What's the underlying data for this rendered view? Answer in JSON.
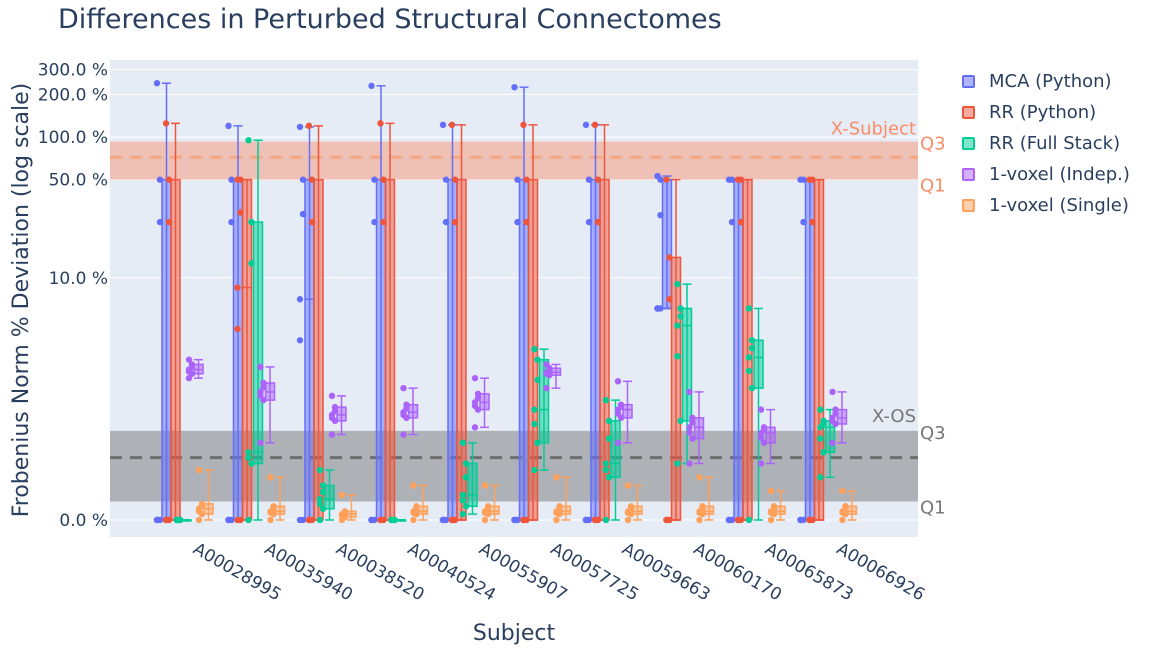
{
  "chart_data": {
    "type": "box",
    "title": "Differences in Perturbed Structural Connectomes",
    "xlabel": "Subject",
    "ylabel": "Frobenius Norm % Deviation (log scale)",
    "yaxis": {
      "scale": "log",
      "tick_labels": [
        "0.0 %",
        "10.0 %",
        "50.0 %",
        "100.0 %",
        "200.0 %",
        "300.0 %"
      ],
      "tick_values": [
        0,
        10,
        50,
        100,
        200,
        300
      ]
    },
    "categories": [
      "A00028995",
      "A00035940",
      "A00038520",
      "A00040524",
      "A00055907",
      "A00057725",
      "A00059663",
      "A00060170",
      "A00065873",
      "A00066926"
    ],
    "series": [
      {
        "name": "MCA (Python)",
        "color": "#636efa",
        "boxes": [
          [
            0,
            0,
            0,
            50,
            240
          ],
          [
            0,
            0,
            0,
            50,
            120
          ],
          [
            0,
            0,
            7,
            50,
            118
          ],
          [
            0,
            0,
            0,
            50,
            230
          ],
          [
            0,
            0,
            0,
            50,
            122
          ],
          [
            0,
            0,
            0,
            50,
            225
          ],
          [
            0,
            0,
            0,
            50,
            122
          ],
          [
            6,
            6,
            6,
            50,
            53
          ],
          [
            0,
            0,
            0,
            50,
            50
          ],
          [
            0,
            0,
            0,
            50,
            50
          ]
        ]
      },
      {
        "name": "RR (Python)",
        "color": "#ef553b",
        "boxes": [
          [
            0,
            0,
            0,
            50,
            125
          ],
          [
            0,
            0,
            8.5,
            50,
            50
          ],
          [
            0,
            0,
            0,
            50,
            120
          ],
          [
            0,
            0,
            0,
            50,
            125
          ],
          [
            0,
            0,
            0,
            50,
            122
          ],
          [
            0,
            0,
            0,
            50,
            122
          ],
          [
            0,
            0,
            0,
            50,
            122
          ],
          [
            0,
            0,
            0,
            14,
            50
          ],
          [
            0,
            0,
            0,
            50,
            50
          ],
          [
            0,
            0,
            0,
            50,
            50
          ]
        ]
      },
      {
        "name": "RR (Full Stack)",
        "color": "#00cc96",
        "boxes": [
          [
            0,
            0,
            0,
            0,
            0
          ],
          [
            0,
            0.3,
            0.4,
            25,
            95
          ],
          [
            0,
            0.04,
            0.08,
            0.15,
            0.25
          ],
          [
            0,
            0,
            0,
            0,
            0
          ],
          [
            0.02,
            0.05,
            0.1,
            0.3,
            0.5
          ],
          [
            0.25,
            0.5,
            1,
            2.5,
            3
          ],
          [
            0,
            0.2,
            0.3,
            0.8,
            1.2
          ],
          [
            0.3,
            0.8,
            4.5,
            6,
            9
          ],
          [
            0,
            1.5,
            2.6,
            3.5,
            6
          ],
          [
            0.2,
            0.4,
            0.7,
            0.8,
            1
          ]
        ]
      },
      {
        "name": "1-voxel (Indep.)",
        "color": "#ab63fa",
        "boxes": [
          [
            1.8,
            1.95,
            2.1,
            2.3,
            2.5
          ],
          [
            0.5,
            1.2,
            1.4,
            1.65,
            2.2
          ],
          [
            0.6,
            0.8,
            0.9,
            1.05,
            1.3
          ],
          [
            0.6,
            0.85,
            0.95,
            1.1,
            1.5
          ],
          [
            0.7,
            1.0,
            1.15,
            1.35,
            1.8
          ],
          [
            1.5,
            1.9,
            2.0,
            2.15,
            2.3
          ],
          [
            0.5,
            0.85,
            1.0,
            1.1,
            1.7
          ],
          [
            0.3,
            0.55,
            0.7,
            0.85,
            1.4
          ],
          [
            0.3,
            0.5,
            0.62,
            0.7,
            1.0
          ],
          [
            0.5,
            0.75,
            0.85,
            1.0,
            1.4
          ]
        ]
      },
      {
        "name": "1-voxel (Single)",
        "color": "#ffa15a",
        "boxes": [
          [
            0,
            0.02,
            0.04,
            0.06,
            0.25
          ],
          [
            0,
            0.02,
            0.03,
            0.05,
            0.2
          ],
          [
            0,
            0.01,
            0.02,
            0.03,
            0.1
          ],
          [
            0,
            0.02,
            0.03,
            0.05,
            0.15
          ],
          [
            0,
            0.02,
            0.03,
            0.05,
            0.15
          ],
          [
            0,
            0.02,
            0.03,
            0.05,
            0.2
          ],
          [
            0,
            0.02,
            0.03,
            0.05,
            0.15
          ],
          [
            0,
            0.02,
            0.03,
            0.05,
            0.2
          ],
          [
            0,
            0.02,
            0.03,
            0.05,
            0.12
          ],
          [
            0,
            0.02,
            0.03,
            0.05,
            0.12
          ]
        ]
      }
    ],
    "reference_bands": [
      {
        "label": "X-Subject",
        "color": "#fa8c66",
        "q1": 50,
        "median": 72,
        "q3": 93,
        "q1_label": "Q1",
        "q3_label": "Q3"
      },
      {
        "label": "X-OS",
        "color": "#777777",
        "q1": 0.07,
        "median": 0.35,
        "q3": 0.65,
        "q1_label": "Q1",
        "q3_label": "Q3"
      }
    ],
    "grid": true,
    "legend_position": "right"
  }
}
